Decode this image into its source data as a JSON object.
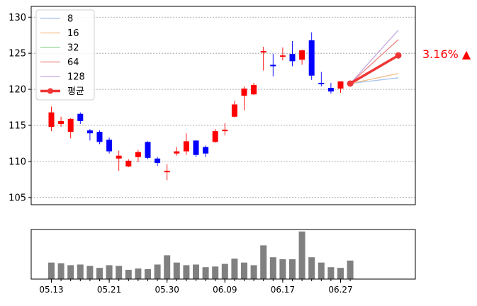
{
  "chart_data": [
    {
      "type": "candlestick",
      "ylim": [
        104,
        131.5
      ],
      "yticks": [
        105,
        110,
        115,
        120,
        125,
        130
      ],
      "grid": true,
      "legend": {
        "placement": "top-left",
        "entries": [
          {
            "label": "8",
            "color": "#a7c4e6"
          },
          {
            "label": "16",
            "color": "#f5be8c"
          },
          {
            "label": "32",
            "color": "#93d893"
          },
          {
            "label": "64",
            "color": "#ee8282"
          },
          {
            "label": "128",
            "color": "#c3a8e0"
          },
          {
            "label": "평균",
            "color": "#ef3535"
          }
        ]
      },
      "up_color": "#ff0000",
      "down_color": "#0000ff",
      "candles": [
        {
          "o": 114.8,
          "h": 117.6,
          "l": 114.2,
          "c": 116.8
        },
        {
          "o": 115.2,
          "h": 116.2,
          "l": 114.8,
          "c": 115.6
        },
        {
          "o": 114.1,
          "h": 116.0,
          "l": 113.2,
          "c": 115.9
        },
        {
          "o": 116.6,
          "h": 116.8,
          "l": 115.2,
          "c": 115.6
        },
        {
          "o": 114.3,
          "h": 114.5,
          "l": 112.9,
          "c": 113.9
        },
        {
          "o": 114.1,
          "h": 114.3,
          "l": 112.4,
          "c": 112.7
        },
        {
          "o": 113.0,
          "h": 113.3,
          "l": 111.1,
          "c": 111.4
        },
        {
          "o": 110.4,
          "h": 111.5,
          "l": 108.7,
          "c": 110.8
        },
        {
          "o": 109.3,
          "h": 110.3,
          "l": 109.2,
          "c": 110.1
        },
        {
          "o": 110.6,
          "h": 111.6,
          "l": 109.9,
          "c": 111.3
        },
        {
          "o": 112.7,
          "h": 112.8,
          "l": 110.3,
          "c": 110.5
        },
        {
          "o": 110.4,
          "h": 110.6,
          "l": 109.4,
          "c": 109.8
        },
        {
          "o": 108.5,
          "h": 109.6,
          "l": 107.4,
          "c": 108.7
        },
        {
          "o": 111.1,
          "h": 112.0,
          "l": 110.8,
          "c": 111.4
        },
        {
          "o": 111.4,
          "h": 113.9,
          "l": 110.9,
          "c": 112.8
        },
        {
          "o": 112.9,
          "h": 112.9,
          "l": 110.6,
          "c": 110.9
        },
        {
          "o": 112.0,
          "h": 112.2,
          "l": 110.6,
          "c": 111.1
        },
        {
          "o": 112.7,
          "h": 114.5,
          "l": 112.6,
          "c": 114.2
        },
        {
          "o": 114.2,
          "h": 115.3,
          "l": 113.6,
          "c": 114.4
        },
        {
          "o": 116.2,
          "h": 118.4,
          "l": 116.1,
          "c": 117.9
        },
        {
          "o": 119.1,
          "h": 120.4,
          "l": 117.1,
          "c": 120.1
        },
        {
          "o": 119.3,
          "h": 120.9,
          "l": 119.2,
          "c": 120.6
        },
        {
          "o": 125.1,
          "h": 125.9,
          "l": 122.6,
          "c": 125.3
        },
        {
          "o": 123.4,
          "h": 124.9,
          "l": 121.8,
          "c": 123.2
        },
        {
          "o": 124.6,
          "h": 125.8,
          "l": 124.0,
          "c": 124.7
        },
        {
          "o": 124.9,
          "h": 126.7,
          "l": 123.2,
          "c": 123.9
        },
        {
          "o": 124.1,
          "h": 125.5,
          "l": 123.4,
          "c": 125.4
        },
        {
          "o": 126.8,
          "h": 127.9,
          "l": 121.3,
          "c": 121.9
        },
        {
          "o": 120.9,
          "h": 122.4,
          "l": 120.4,
          "c": 120.7
        },
        {
          "o": 120.2,
          "h": 120.9,
          "l": 119.4,
          "c": 119.7
        },
        {
          "o": 120.1,
          "h": 121.1,
          "l": 119.5,
          "c": 121.1
        },
        {
          "o": 120.8,
          "h": 120.9,
          "l": 120.7,
          "c": 120.8
        }
      ],
      "forecast": {
        "start": 120.8,
        "lines": [
          {
            "label": "8",
            "end": 121.6
          },
          {
            "label": "16",
            "end": 122.2
          },
          {
            "label": "32",
            "end": 124.7
          },
          {
            "label": "64",
            "end": 126.9
          },
          {
            "label": "128",
            "end": 128.2
          }
        ],
        "average_end": 124.7
      },
      "annotation": "3.16% ▲",
      "annotation_color": "#ff0000"
    },
    {
      "type": "bar",
      "series_color": "#808080",
      "values": [
        25,
        24,
        21,
        22,
        20,
        17,
        21,
        20,
        14,
        16,
        15,
        22,
        36,
        25,
        21,
        22,
        18,
        19,
        23,
        31,
        25,
        21,
        51,
        33,
        30,
        30,
        72,
        33,
        25,
        18,
        17,
        28
      ],
      "ylim": [
        0,
        75
      ],
      "xtick_labels": [
        {
          "index": 0,
          "label": "05.13"
        },
        {
          "index": 6,
          "label": "05.21"
        },
        {
          "index": 12,
          "label": "05.30"
        },
        {
          "index": 18,
          "label": "06.09"
        },
        {
          "index": 24,
          "label": "06.17"
        },
        {
          "index": 30,
          "label": "06.27"
        }
      ]
    }
  ]
}
